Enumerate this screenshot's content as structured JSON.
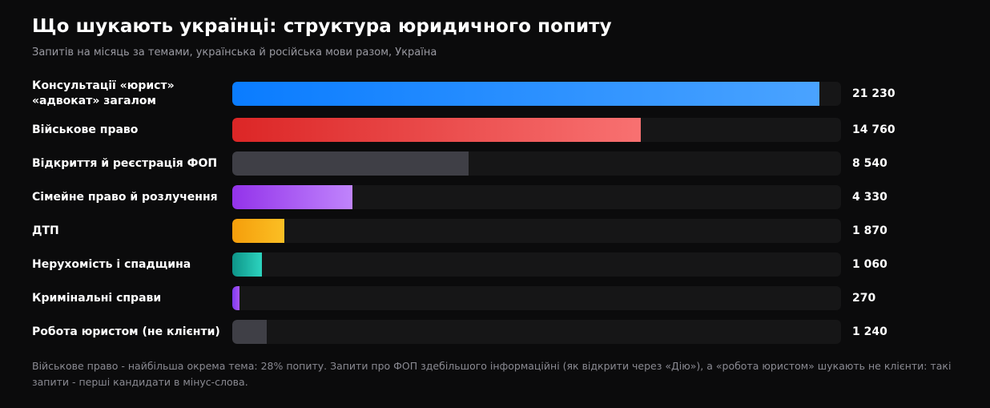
{
  "title": "Що шукають українці: структура юридичного попиту",
  "subtitle": "Запитів на місяць за темами, українська й російська мови разом, Україна",
  "note": "Військове право - найбільша окрема тема: 28% попиту. Запити про ФОП здебільшого інформаційні (як відкрити через «Дію»), а «робота юристом» шукають не клієнти: такі запити - перші кандидати в мінус-слова.",
  "chart_data": {
    "type": "bar",
    "orientation": "horizontal",
    "title": "Що шукають українці: структура юридичного попиту",
    "subtitle": "Запитів на місяць за темами, українська й російська мови разом, Україна",
    "categories": [
      "Консультації «юрист» «адвокат» загалом",
      "Військове право",
      "Відкриття й реєстрація ФОП",
      "Сімейне право й розлучення",
      "ДТП",
      "Нерухомість і спадщина",
      "Кримінальні справи",
      "Робота юристом (не клієнти)"
    ],
    "values": [
      21230,
      14760,
      8540,
      4330,
      1870,
      1060,
      270,
      1240
    ],
    "value_labels": [
      "21 230",
      "14 760",
      "8 540",
      "4 330",
      "1 870",
      "1 060",
      "270",
      "1 240"
    ],
    "xlim": [
      0,
      22000
    ],
    "grid": false,
    "colors": [
      [
        "#0a7cff",
        "#4aa3ff"
      ],
      [
        "#dc2626",
        "#f87171"
      ],
      [
        "#3f3f46",
        "#3f3f46"
      ],
      [
        "#9333ea",
        "#c084fc"
      ],
      [
        "#f59e0b",
        "#fbbf24"
      ],
      [
        "#0d9488",
        "#2dd4bf"
      ],
      [
        "#7c3aed",
        "#a855f7"
      ],
      [
        "#3f3f46",
        "#3f3f46"
      ]
    ],
    "track_color": "#161617"
  }
}
